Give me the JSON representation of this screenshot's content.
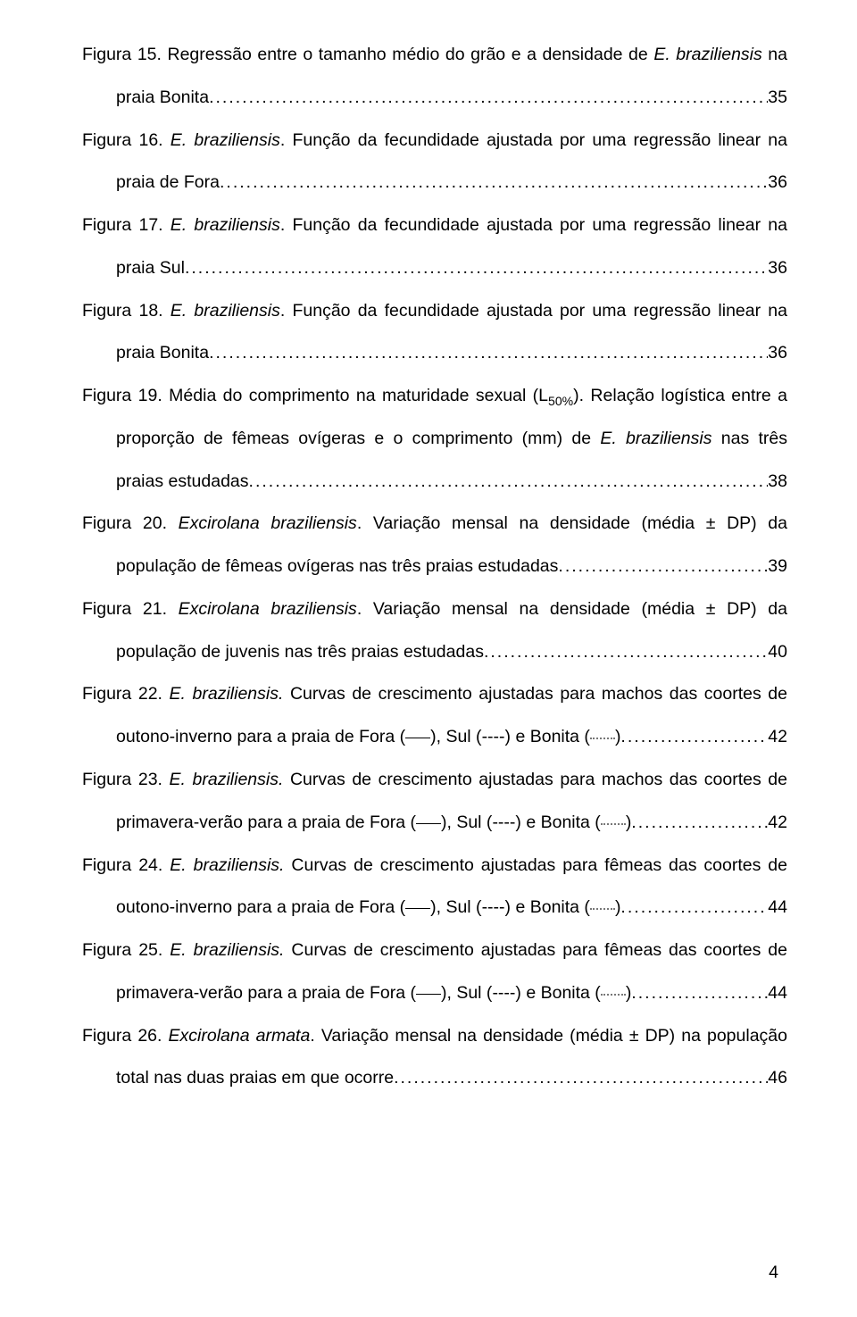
{
  "page_number": "4",
  "dot_leader": "....................................................................................................................................................................................................................................................................",
  "entries": [
    {
      "label": "Figura 15.",
      "first_line": "Regressão entre o tamanho médio do grão e a densidade de <i>E. braziliensis</i> na",
      "cont": "praia Bonita.",
      "page": "35"
    },
    {
      "label": "Figura 16.",
      "first_line": "<i>E. braziliensis</i>. Função da fecundidade ajustada por uma regressão linear na",
      "cont": "praia de Fora.",
      "page": "36"
    },
    {
      "label": "Figura 17.",
      "first_line": "<i>E. braziliensis</i>. Função da fecundidade ajustada por uma regressão linear na",
      "cont": "praia Sul.",
      "page": "36"
    },
    {
      "label": "Figura 18.",
      "first_line": "<i>E. braziliensis</i>. Função da fecundidade ajustada por uma regressão linear na",
      "cont": "praia Bonita.",
      "page": "36"
    },
    {
      "label": "Figura 19.",
      "first_line": "Média do comprimento na maturidade sexual (L<sub>50%</sub>). Relação logística entre a",
      "mid_lines": [
        "proporção de fêmeas ovígeras e o comprimento (mm) de <i>E. braziliensis</i> nas três"
      ],
      "cont": "praias estudadas.",
      "page": "38"
    },
    {
      "label": "Figura 20.",
      "first_line": "<i>Excirolana braziliensis</i>. Variação mensal na densidade (média ± DP) da",
      "cont": "população de fêmeas ovígeras nas três praias estudadas.",
      "page": "39"
    },
    {
      "label": "Figura 21.",
      "first_line": "<i>Excirolana braziliensis</i>.  Variação mensal na densidade (média ± DP) da",
      "cont": "população de juvenis nas três praias estudadas.",
      "page": "40"
    },
    {
      "label": "Figura 22.",
      "first_line": "<i>E. braziliensis.</i> Curvas de crescimento ajustadas para machos das coortes de",
      "cont_legend": "outono-inverno para a praia de Fora (",
      "cont_end": ").",
      "page": "42"
    },
    {
      "label": "Figura 23.",
      "first_line": "<i>E. braziliensis.</i> Curvas de crescimento ajustadas para machos das coortes de",
      "cont_legend": "primavera-verão para a praia de Fora (",
      "cont_end": ").",
      "page": "42"
    },
    {
      "label": "Figura 24.",
      "first_line": "<i>E. braziliensis.</i> Curvas de crescimento ajustadas para fêmeas das coortes de",
      "cont_legend": "outono-inverno para a praia de Fora (",
      "cont_end": ").",
      "page": "44"
    },
    {
      "label": "Figura 25.",
      "first_line": "<i>E. braziliensis.</i> Curvas de crescimento ajustadas para fêmeas das coortes de",
      "cont_legend": "primavera-verão para a praia de Fora (",
      "cont_end": ").",
      "page": "44"
    },
    {
      "label": "Figura 26.",
      "first_line": "<i>Excirolana armata</i>. Variação mensal na densidade (média ± DP) na população",
      "cont": "total nas duas praias em que ocorre.",
      "page": "46"
    }
  ],
  "legend_parts": {
    "sul": "), Sul (",
    "dashes": "----",
    "bonita": ") e Bonita ("
  }
}
